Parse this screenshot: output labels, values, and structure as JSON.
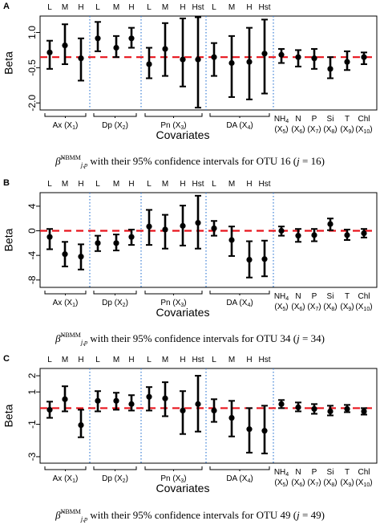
{
  "chart_data": [
    {
      "type": "scatter",
      "panel": "A",
      "xlabel": "Covariates",
      "ylabel": "Beta",
      "ylim": [
        -2.3,
        1.7
      ],
      "yticks": [
        1.0,
        -0.5,
        -2.0
      ],
      "ytick_labels": [
        "1.0",
        "-0.5",
        "-2.0"
      ],
      "reference_line": -0.05,
      "points": [
        {
          "group": "Ax",
          "level": "L",
          "estimate": 0.15,
          "lower": -0.55,
          "upper": 0.65
        },
        {
          "group": "Ax",
          "level": "M",
          "estimate": 0.45,
          "lower": -0.35,
          "upper": 1.35
        },
        {
          "group": "Ax",
          "level": "H",
          "estimate": -0.1,
          "lower": -1.05,
          "upper": 0.75
        },
        {
          "group": "Dp",
          "level": "L",
          "estimate": 0.75,
          "lower": 0.2,
          "upper": 1.45
        },
        {
          "group": "Dp",
          "level": "M",
          "estimate": 0.35,
          "lower": -0.05,
          "upper": 0.85
        },
        {
          "group": "Dp",
          "level": "H",
          "estimate": 0.75,
          "lower": 0.35,
          "upper": 1.2
        },
        {
          "group": "Pn",
          "level": "L",
          "estimate": -0.35,
          "lower": -0.95,
          "upper": 0.35
        },
        {
          "group": "Pn",
          "level": "M",
          "estimate": 0.3,
          "lower": -0.85,
          "upper": 1.4
        },
        {
          "group": "Pn",
          "level": "H",
          "estimate": -0.15,
          "lower": -1.3,
          "upper": 1.6
        },
        {
          "group": "Pn",
          "level": "Hst",
          "estimate": -0.15,
          "lower": -2.2,
          "upper": 1.65
        },
        {
          "group": "DA",
          "level": "L",
          "estimate": -0.05,
          "lower": -0.85,
          "upper": 0.55
        },
        {
          "group": "DA",
          "level": "M",
          "estimate": -0.3,
          "lower": -1.75,
          "upper": 0.85
        },
        {
          "group": "DA",
          "level": "H",
          "estimate": -0.25,
          "lower": -1.85,
          "upper": 1.2
        },
        {
          "group": "DA",
          "level": "Hst",
          "estimate": 0.1,
          "lower": -1.6,
          "upper": 1.55
        },
        {
          "group": "NH4",
          "level": "",
          "estimate": 0.05,
          "lower": -0.3,
          "upper": 0.3
        },
        {
          "group": "N",
          "level": "",
          "estimate": -0.05,
          "lower": -0.45,
          "upper": 0.25
        },
        {
          "group": "P",
          "level": "",
          "estimate": -0.1,
          "lower": -0.55,
          "upper": 0.3
        },
        {
          "group": "Si",
          "level": "",
          "estimate": -0.55,
          "lower": -0.95,
          "upper": -0.05
        },
        {
          "group": "T",
          "level": "",
          "estimate": -0.25,
          "lower": -0.6,
          "upper": 0.2
        },
        {
          "group": "Chl",
          "level": "",
          "estimate": -0.05,
          "lower": -0.35,
          "upper": 0.15
        }
      ]
    },
    {
      "type": "scatter",
      "panel": "B",
      "xlabel": "Covariates",
      "ylabel": "Beta",
      "ylim": [
        -9.2,
        6.2
      ],
      "yticks": [
        4,
        0,
        -4,
        -8
      ],
      "ytick_labels": [
        "4",
        "0",
        "-4",
        "-8"
      ],
      "reference_line": 0,
      "points": [
        {
          "group": "Ax",
          "level": "L",
          "estimate": -1.0,
          "lower": -3.0,
          "upper": 0.3
        },
        {
          "group": "Ax",
          "level": "M",
          "estimate": -3.8,
          "lower": -5.8,
          "upper": -1.8
        },
        {
          "group": "Ax",
          "level": "H",
          "estimate": -4.2,
          "lower": -6.3,
          "upper": -2.2
        },
        {
          "group": "Dp",
          "level": "L",
          "estimate": -2.0,
          "lower": -3.3,
          "upper": -0.8
        },
        {
          "group": "Dp",
          "level": "M",
          "estimate": -2.0,
          "lower": -3.2,
          "upper": -0.6
        },
        {
          "group": "Dp",
          "level": "H",
          "estimate": -1.0,
          "lower": -2.3,
          "upper": 0.2
        },
        {
          "group": "Pn",
          "level": "L",
          "estimate": 0.7,
          "lower": -2.3,
          "upper": 3.4
        },
        {
          "group": "Pn",
          "level": "M",
          "estimate": 0.2,
          "lower": -2.9,
          "upper": 2.6
        },
        {
          "group": "Pn",
          "level": "H",
          "estimate": 0.8,
          "lower": -2.4,
          "upper": 4.1
        },
        {
          "group": "Pn",
          "level": "Hst",
          "estimate": 1.3,
          "lower": -2.9,
          "upper": 5.7
        },
        {
          "group": "DA",
          "level": "L",
          "estimate": 0.4,
          "lower": -0.8,
          "upper": 1.6
        },
        {
          "group": "DA",
          "level": "M",
          "estimate": -1.5,
          "lower": -4.1,
          "upper": 0.7
        },
        {
          "group": "DA",
          "level": "H",
          "estimate": -4.7,
          "lower": -7.6,
          "upper": -1.7
        },
        {
          "group": "DA",
          "level": "Hst",
          "estimate": -4.6,
          "lower": -7.4,
          "upper": -1.6
        },
        {
          "group": "NH4",
          "level": "",
          "estimate": 0.0,
          "lower": -0.8,
          "upper": 0.7
        },
        {
          "group": "N",
          "level": "",
          "estimate": -0.8,
          "lower": -1.8,
          "upper": 0.3
        },
        {
          "group": "P",
          "level": "",
          "estimate": -0.7,
          "lower": -1.7,
          "upper": 0.3
        },
        {
          "group": "Si",
          "level": "",
          "estimate": 1.1,
          "lower": 0.1,
          "upper": 2.0
        },
        {
          "group": "T",
          "level": "",
          "estimate": -0.7,
          "lower": -1.5,
          "upper": 0.2
        },
        {
          "group": "Chl",
          "level": "",
          "estimate": -0.4,
          "lower": -1.1,
          "upper": 0.3
        }
      ]
    },
    {
      "type": "scatter",
      "panel": "C",
      "xlabel": "Covariates",
      "ylabel": "Beta",
      "ylim": [
        -3.4,
        2.45
      ],
      "yticks": [
        2,
        1,
        -1,
        -3
      ],
      "ytick_labels": [
        "2",
        "1",
        "-1",
        "-3"
      ],
      "reference_line": 0,
      "points": [
        {
          "group": "Ax",
          "level": "L",
          "estimate": -0.1,
          "lower": -0.6,
          "upper": 0.4
        },
        {
          "group": "Ax",
          "level": "M",
          "estimate": 0.55,
          "lower": -0.2,
          "upper": 1.35
        },
        {
          "group": "Ax",
          "level": "H",
          "estimate": -1.05,
          "lower": -1.8,
          "upper": -0.1
        },
        {
          "group": "Dp",
          "level": "L",
          "estimate": 0.45,
          "lower": -0.2,
          "upper": 1.05
        },
        {
          "group": "Dp",
          "level": "M",
          "estimate": 0.45,
          "lower": -0.1,
          "upper": 0.95
        },
        {
          "group": "Dp",
          "level": "H",
          "estimate": 0.25,
          "lower": -0.15,
          "upper": 0.8
        },
        {
          "group": "Pn",
          "level": "L",
          "estimate": 0.7,
          "lower": -0.15,
          "upper": 1.3
        },
        {
          "group": "Pn",
          "level": "M",
          "estimate": 0.6,
          "lower": -0.5,
          "upper": 1.6
        },
        {
          "group": "Pn",
          "level": "H",
          "estimate": -0.15,
          "lower": -1.6,
          "upper": 1.05
        },
        {
          "group": "Pn",
          "level": "Hst",
          "estimate": 0.25,
          "lower": -1.45,
          "upper": 2.0
        },
        {
          "group": "DA",
          "level": "L",
          "estimate": -0.15,
          "lower": -0.85,
          "upper": 0.55
        },
        {
          "group": "DA",
          "level": "M",
          "estimate": -0.6,
          "lower": -1.75,
          "upper": 0.45
        },
        {
          "group": "DA",
          "level": "H",
          "estimate": -1.3,
          "lower": -2.75,
          "upper": 0.0
        },
        {
          "group": "DA",
          "level": "Hst",
          "estimate": -1.4,
          "lower": -2.8,
          "upper": 0.15
        },
        {
          "group": "NH4",
          "level": "",
          "estimate": 0.25,
          "lower": 0.0,
          "upper": 0.5
        },
        {
          "group": "N",
          "level": "",
          "estimate": 0.05,
          "lower": -0.2,
          "upper": 0.35
        },
        {
          "group": "P",
          "level": "",
          "estimate": -0.05,
          "lower": -0.35,
          "upper": 0.25
        },
        {
          "group": "Si",
          "level": "",
          "estimate": -0.2,
          "lower": -0.45,
          "upper": 0.15
        },
        {
          "group": "T",
          "level": "",
          "estimate": -0.05,
          "lower": -0.25,
          "upper": 0.2
        },
        {
          "group": "Chl",
          "level": "",
          "estimate": -0.2,
          "lower": -0.4,
          "upper": 0.0
        }
      ]
    }
  ],
  "panels": [
    {
      "letter": "A",
      "caption_rest": " with their 95% confidence intervals for OTU 16 (",
      "caption_j": "j",
      "caption_eq": " = 16)"
    },
    {
      "letter": "B",
      "caption_rest": " with their 95% confidence intervals for OTU 34 (",
      "caption_j": "j",
      "caption_eq": " = 34)"
    },
    {
      "letter": "C",
      "caption_rest": " with their 95% confidence intervals for OTU 49 (",
      "caption_j": "j",
      "caption_eq": " = 49)"
    }
  ],
  "caption_symbol": "β̂",
  "caption_sup": "NBMM",
  "caption_sub": "j,p",
  "level_labels": [
    "L",
    "M",
    "H",
    "L",
    "M",
    "H",
    "Hst",
    "L",
    "M",
    "H",
    "Hst"
  ],
  "group_labels": [
    {
      "name": "Ax",
      "sub": "1"
    },
    {
      "name": "Dp",
      "sub": "2"
    },
    {
      "name": "Pn",
      "sub": "3"
    },
    {
      "name": "DA",
      "sub": "4"
    }
  ],
  "env_labels": [
    {
      "top": "NH",
      "top_sub": "4",
      "sub": "5"
    },
    {
      "top": "N",
      "top_sub": "",
      "sub": "6"
    },
    {
      "top": "P",
      "top_sub": "",
      "sub": "7"
    },
    {
      "top": "Si",
      "top_sub": "",
      "sub": "8"
    },
    {
      "top": "T",
      "top_sub": "",
      "sub": "9"
    },
    {
      "top": "Chl",
      "top_sub": "",
      "sub": "10"
    }
  ],
  "colors": {
    "reference_line": "#e8141c",
    "separator": "#3a7fd5",
    "marks": "#000000"
  }
}
